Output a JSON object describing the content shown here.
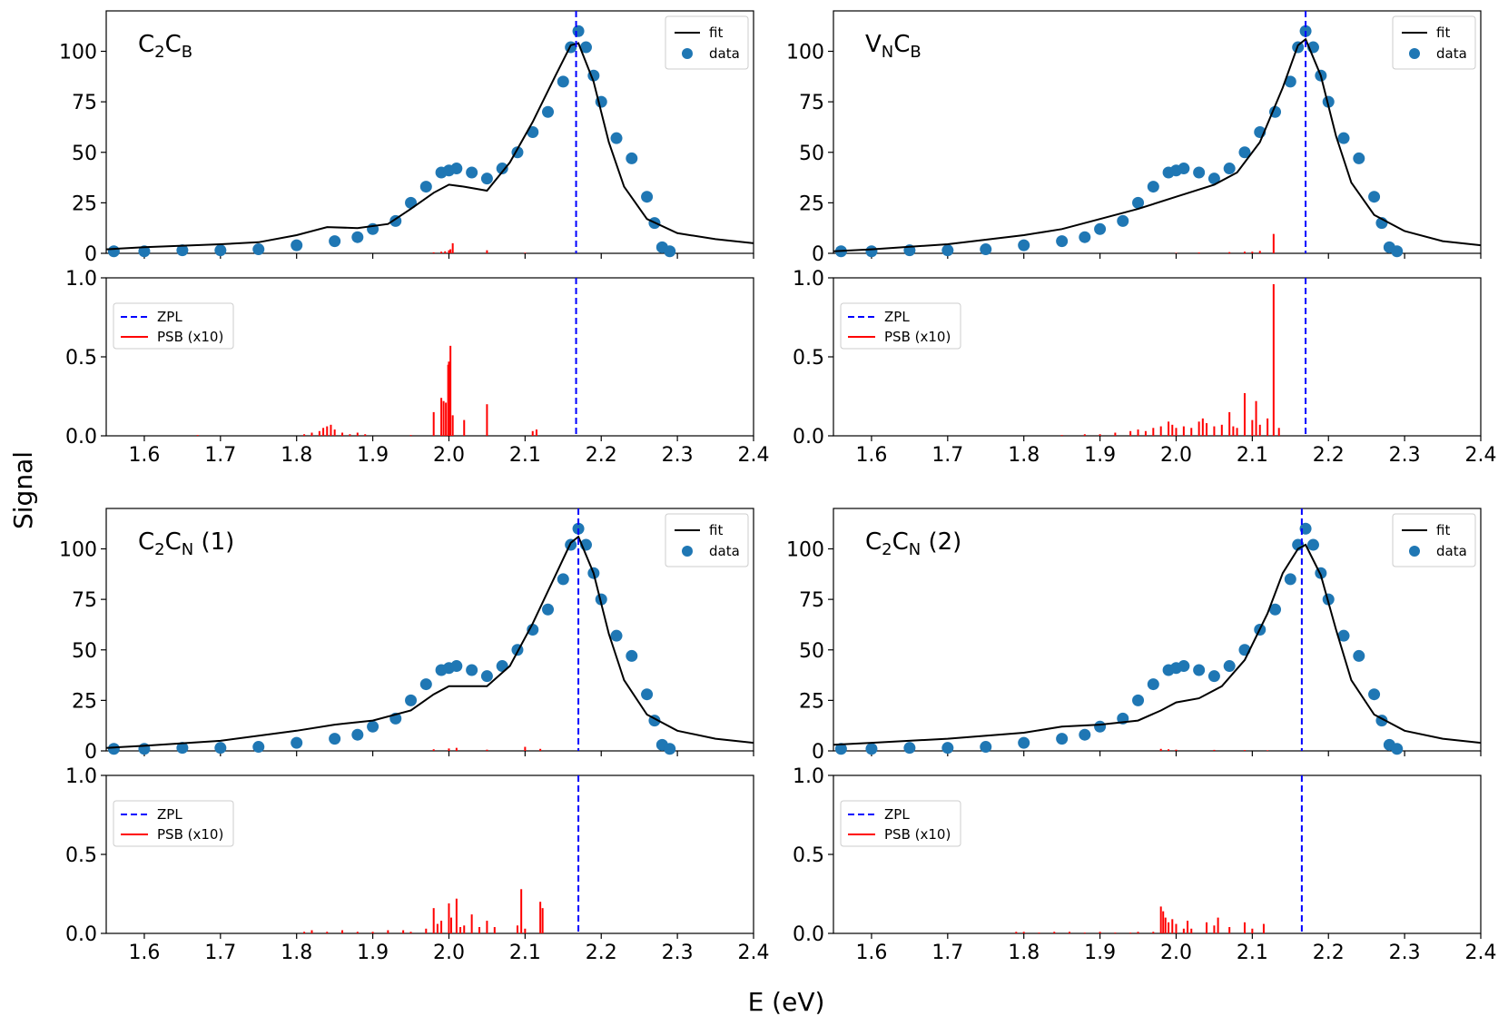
{
  "figure": {
    "xlabel": "E (eV)",
    "ylabel": "Signal"
  },
  "chart_data": [
    {
      "type": "scatter",
      "label": "panel-c2cb",
      "title": {
        "base1": "C",
        "sub1": "2",
        "base2": "C",
        "sub2": "B",
        "suffix": ""
      },
      "xlim": [
        1.55,
        2.4
      ],
      "ylim": [
        0,
        120
      ],
      "yticks": [
        0,
        25,
        50,
        75,
        100
      ],
      "legend": [
        "fit",
        "data"
      ],
      "legend_placement": "top-right",
      "zpl": 2.167,
      "fit": {
        "name": "fit",
        "x": [
          1.55,
          1.6,
          1.7,
          1.75,
          1.8,
          1.84,
          1.88,
          1.92,
          1.95,
          1.98,
          2.0,
          2.02,
          2.05,
          2.08,
          2.11,
          2.14,
          2.16,
          2.17,
          2.19,
          2.21,
          2.23,
          2.26,
          2.3,
          2.35,
          2.4
        ],
        "y": [
          2,
          3,
          4.5,
          5.5,
          9,
          13,
          12.5,
          14.5,
          22,
          30,
          34,
          33,
          31,
          45,
          65,
          88,
          103,
          104,
          85,
          55,
          33,
          17,
          10,
          7,
          5
        ]
      },
      "data": {
        "name": "data",
        "x": [
          1.56,
          1.6,
          1.65,
          1.7,
          1.75,
          1.8,
          1.85,
          1.88,
          1.9,
          1.93,
          1.95,
          1.97,
          1.99,
          2.0,
          2.01,
          2.03,
          2.05,
          2.07,
          2.09,
          2.11,
          2.13,
          2.15,
          2.16,
          2.17,
          2.18,
          2.19,
          2.2,
          2.22,
          2.24,
          2.26,
          2.27,
          2.28,
          2.29
        ],
        "y": [
          1,
          1,
          1.5,
          1.5,
          2,
          4,
          6,
          8,
          12,
          16,
          25,
          33,
          40,
          41,
          42,
          40,
          37,
          42,
          50,
          60,
          70,
          85,
          102,
          110,
          102,
          88,
          75,
          57,
          47,
          28,
          15,
          3,
          1
        ]
      },
      "psb": {
        "x": [
          1.98,
          1.99,
          1.995,
          2.0,
          2.002,
          2.005,
          2.05,
          2.1
        ],
        "y": [
          0.5,
          0.8,
          1.0,
          1.5,
          2.0,
          5.0,
          1.5,
          0.3
        ]
      },
      "bottom": {
        "ylim": [
          0,
          1.0
        ],
        "yticks": [
          0.0,
          0.5,
          1.0
        ],
        "ytick_labels": [
          "0.0",
          "0.5",
          "1.0"
        ],
        "xticks": [
          1.6,
          1.7,
          1.8,
          1.9,
          2.0,
          2.1,
          2.2,
          2.3,
          2.4
        ],
        "xtick_labels": [
          "1.6",
          "1.7",
          "1.8",
          "1.9",
          "2.0",
          "2.1",
          "2.2",
          "2.3",
          "2.4"
        ],
        "legend": [
          "ZPL",
          "PSB (x10)"
        ],
        "legend_placement": "upper-left",
        "psb_sticks": {
          "x": [
            1.67,
            1.81,
            1.82,
            1.83,
            1.835,
            1.84,
            1.845,
            1.85,
            1.86,
            1.87,
            1.88,
            1.89,
            1.95,
            1.98,
            1.99,
            1.993,
            1.996,
            1.999,
            2.0,
            2.002,
            2.005,
            2.02,
            2.05,
            2.11,
            2.115
          ],
          "y": [
            0.005,
            0.01,
            0.02,
            0.03,
            0.05,
            0.06,
            0.07,
            0.04,
            0.02,
            0.01,
            0.02,
            0.01,
            0.005,
            0.15,
            0.24,
            0.22,
            0.21,
            0.45,
            0.47,
            0.57,
            0.13,
            0.1,
            0.2,
            0.03,
            0.04
          ]
        }
      }
    },
    {
      "type": "scatter",
      "label": "panel-vncb",
      "title": {
        "base1": "V",
        "sub1": "N",
        "base2": "C",
        "sub2": "B",
        "suffix": ""
      },
      "xlim": [
        1.55,
        2.4
      ],
      "ylim": [
        0,
        120
      ],
      "yticks": [
        0,
        25,
        50,
        75,
        100
      ],
      "legend": [
        "fit",
        "data"
      ],
      "legend_placement": "top-right",
      "zpl": 2.17,
      "fit": {
        "name": "fit",
        "x": [
          1.55,
          1.6,
          1.7,
          1.8,
          1.85,
          1.9,
          1.95,
          2.0,
          2.05,
          2.08,
          2.11,
          2.14,
          2.16,
          2.17,
          2.19,
          2.21,
          2.23,
          2.26,
          2.3,
          2.35,
          2.4
        ],
        "y": [
          1,
          2,
          4.5,
          9,
          12,
          17,
          22,
          28,
          34,
          40,
          55,
          82,
          103,
          106,
          88,
          58,
          35,
          19,
          11,
          6,
          4
        ]
      },
      "data": {
        "name": "data",
        "x": [
          1.56,
          1.6,
          1.65,
          1.7,
          1.75,
          1.8,
          1.85,
          1.88,
          1.9,
          1.93,
          1.95,
          1.97,
          1.99,
          2.0,
          2.01,
          2.03,
          2.05,
          2.07,
          2.09,
          2.11,
          2.13,
          2.15,
          2.16,
          2.17,
          2.18,
          2.19,
          2.2,
          2.22,
          2.24,
          2.26,
          2.27,
          2.28,
          2.29
        ],
        "y": [
          1,
          1,
          1.5,
          1.5,
          2,
          4,
          6,
          8,
          12,
          16,
          25,
          33,
          40,
          41,
          42,
          40,
          37,
          42,
          50,
          60,
          70,
          85,
          102,
          110,
          102,
          88,
          75,
          57,
          47,
          28,
          15,
          3,
          1
        ]
      },
      "psb": {
        "x": [
          2.0,
          2.03,
          2.07,
          2.09,
          2.1,
          2.11,
          2.128
        ],
        "y": [
          0.2,
          0.4,
          0.6,
          0.8,
          0.8,
          1.2,
          9.6
        ]
      },
      "bottom": {
        "ylim": [
          0,
          1.0
        ],
        "yticks": [
          0.0,
          0.5,
          1.0
        ],
        "ytick_labels": [
          "0.0",
          "0.5",
          "1.0"
        ],
        "xticks": [
          1.6,
          1.7,
          1.8,
          1.9,
          2.0,
          2.1,
          2.2,
          2.3,
          2.4
        ],
        "xtick_labels": [
          "1.6",
          "1.7",
          "1.8",
          "1.9",
          "2.0",
          "2.1",
          "2.2",
          "2.3",
          "2.4"
        ],
        "legend": [
          "ZPL",
          "PSB (x10)"
        ],
        "legend_placement": "upper-left",
        "psb_sticks": {
          "x": [
            1.85,
            1.88,
            1.9,
            1.92,
            1.94,
            1.95,
            1.96,
            1.97,
            1.98,
            1.99,
            1.995,
            2.0,
            2.01,
            2.02,
            2.03,
            2.035,
            2.04,
            2.05,
            2.06,
            2.07,
            2.075,
            2.08,
            2.09,
            2.1,
            2.105,
            2.11,
            2.12,
            2.128,
            2.135
          ],
          "y": [
            0.005,
            0.01,
            0.01,
            0.02,
            0.03,
            0.04,
            0.03,
            0.05,
            0.06,
            0.09,
            0.07,
            0.05,
            0.06,
            0.05,
            0.09,
            0.11,
            0.08,
            0.06,
            0.07,
            0.15,
            0.06,
            0.05,
            0.27,
            0.1,
            0.22,
            0.07,
            0.11,
            0.96,
            0.05
          ]
        }
      }
    },
    {
      "type": "scatter",
      "label": "panel-c2cn-1",
      "title": {
        "base1": "C",
        "sub1": "2",
        "base2": "C",
        "sub2": "N",
        "suffix": " (1)"
      },
      "xlim": [
        1.55,
        2.4
      ],
      "ylim": [
        0,
        120
      ],
      "yticks": [
        0,
        25,
        50,
        75,
        100
      ],
      "legend": [
        "fit",
        "data"
      ],
      "legend_placement": "top-right",
      "zpl": 2.17,
      "fit": {
        "name": "fit",
        "x": [
          1.55,
          1.6,
          1.7,
          1.8,
          1.85,
          1.9,
          1.95,
          1.98,
          2.0,
          2.02,
          2.05,
          2.08,
          2.11,
          2.14,
          2.16,
          2.17,
          2.19,
          2.21,
          2.23,
          2.26,
          2.3,
          2.35,
          2.4
        ],
        "y": [
          1.5,
          2.5,
          5,
          10,
          13,
          15,
          20,
          28,
          32,
          32,
          32,
          42,
          63,
          87,
          103,
          106,
          88,
          58,
          35,
          18,
          10,
          6,
          4
        ]
      },
      "data": {
        "name": "data",
        "x": [
          1.56,
          1.6,
          1.65,
          1.7,
          1.75,
          1.8,
          1.85,
          1.88,
          1.9,
          1.93,
          1.95,
          1.97,
          1.99,
          2.0,
          2.01,
          2.03,
          2.05,
          2.07,
          2.09,
          2.11,
          2.13,
          2.15,
          2.16,
          2.17,
          2.18,
          2.19,
          2.2,
          2.22,
          2.24,
          2.26,
          2.27,
          2.28,
          2.29
        ],
        "y": [
          1,
          1,
          1.5,
          1.5,
          2,
          4,
          6,
          8,
          12,
          16,
          25,
          33,
          40,
          41,
          42,
          40,
          37,
          42,
          50,
          60,
          70,
          85,
          102,
          110,
          102,
          88,
          75,
          57,
          47,
          28,
          15,
          3,
          1
        ]
      },
      "psb": {
        "x": [
          1.98,
          2.0,
          2.01,
          2.05,
          2.1,
          2.12
        ],
        "y": [
          0.8,
          1.2,
          1.5,
          0.6,
          2.0,
          1.0
        ]
      },
      "bottom": {
        "ylim": [
          0,
          1.0
        ],
        "yticks": [
          0.0,
          0.5,
          1.0
        ],
        "ytick_labels": [
          "0.0",
          "0.5",
          "1.0"
        ],
        "xticks": [
          1.6,
          1.7,
          1.8,
          1.9,
          2.0,
          2.1,
          2.2,
          2.3,
          2.4
        ],
        "xtick_labels": [
          "1.6",
          "1.7",
          "1.8",
          "1.9",
          "2.0",
          "2.1",
          "2.2",
          "2.3",
          "2.4"
        ],
        "legend": [
          "ZPL",
          "PSB (x10)"
        ],
        "legend_placement": "upper-left",
        "psb_sticks": {
          "x": [
            1.81,
            1.82,
            1.84,
            1.86,
            1.88,
            1.9,
            1.92,
            1.94,
            1.95,
            1.97,
            1.98,
            1.985,
            1.99,
            2.0,
            2.003,
            2.01,
            2.015,
            2.02,
            2.03,
            2.04,
            2.05,
            2.06,
            2.09,
            2.095,
            2.1,
            2.12,
            2.123
          ],
          "y": [
            0.01,
            0.02,
            0.01,
            0.02,
            0.01,
            0.01,
            0.02,
            0.02,
            0.01,
            0.03,
            0.16,
            0.06,
            0.08,
            0.19,
            0.1,
            0.22,
            0.04,
            0.05,
            0.12,
            0.04,
            0.08,
            0.04,
            0.05,
            0.28,
            0.03,
            0.2,
            0.16
          ]
        }
      }
    },
    {
      "type": "scatter",
      "label": "panel-c2cn-2",
      "title": {
        "base1": "C",
        "sub1": "2",
        "base2": "C",
        "sub2": "N",
        "suffix": " (2)"
      },
      "xlim": [
        1.55,
        2.4
      ],
      "ylim": [
        0,
        120
      ],
      "yticks": [
        0,
        25,
        50,
        75,
        100
      ],
      "legend": [
        "fit",
        "data"
      ],
      "legend_placement": "top-right",
      "zpl": 2.165,
      "fit": {
        "name": "fit",
        "x": [
          1.55,
          1.6,
          1.7,
          1.8,
          1.85,
          1.9,
          1.95,
          1.98,
          2.0,
          2.03,
          2.06,
          2.09,
          2.12,
          2.14,
          2.16,
          2.17,
          2.19,
          2.21,
          2.23,
          2.26,
          2.3,
          2.35,
          2.4
        ],
        "y": [
          3,
          4,
          6,
          9,
          12,
          13,
          15,
          20,
          24,
          26,
          32,
          45,
          68,
          88,
          100,
          102,
          87,
          60,
          35,
          18,
          10,
          6,
          4
        ]
      },
      "data": {
        "name": "data",
        "x": [
          1.56,
          1.6,
          1.65,
          1.7,
          1.75,
          1.8,
          1.85,
          1.88,
          1.9,
          1.93,
          1.95,
          1.97,
          1.99,
          2.0,
          2.01,
          2.03,
          2.05,
          2.07,
          2.09,
          2.11,
          2.13,
          2.15,
          2.16,
          2.17,
          2.18,
          2.19,
          2.2,
          2.22,
          2.24,
          2.26,
          2.27,
          2.28,
          2.29
        ],
        "y": [
          1,
          1,
          1.5,
          1.5,
          2,
          4,
          6,
          8,
          12,
          16,
          25,
          33,
          40,
          41,
          42,
          40,
          37,
          42,
          50,
          60,
          70,
          85,
          102,
          110,
          102,
          88,
          75,
          57,
          47,
          28,
          15,
          3,
          1
        ]
      },
      "psb": {
        "x": [
          1.98,
          1.99,
          2.0,
          2.05,
          2.09,
          2.12
        ],
        "y": [
          1.0,
          0.8,
          0.6,
          0.5,
          0.4,
          0.3
        ]
      },
      "bottom": {
        "ylim": [
          0,
          1.0
        ],
        "yticks": [
          0.0,
          0.5,
          1.0
        ],
        "ytick_labels": [
          "0.0",
          "0.5",
          "1.0"
        ],
        "xticks": [
          1.6,
          1.7,
          1.8,
          1.9,
          2.0,
          2.1,
          2.2,
          2.3,
          2.4
        ],
        "xtick_labels": [
          "1.6",
          "1.7",
          "1.8",
          "1.9",
          "2.0",
          "2.1",
          "2.2",
          "2.3",
          "2.4"
        ],
        "legend": [
          "ZPL",
          "PSB (x10)"
        ],
        "legend_placement": "upper-left",
        "psb_sticks": {
          "x": [
            1.79,
            1.8,
            1.82,
            1.84,
            1.86,
            1.88,
            1.9,
            1.92,
            1.94,
            1.95,
            1.97,
            1.98,
            1.983,
            1.986,
            1.99,
            1.995,
            2.0,
            2.01,
            2.015,
            2.02,
            2.04,
            2.05,
            2.055,
            2.07,
            2.09,
            2.1,
            2.115
          ],
          "y": [
            0.01,
            0.01,
            0.005,
            0.01,
            0.01,
            0.005,
            0.01,
            0.005,
            0.005,
            0.01,
            0.01,
            0.17,
            0.14,
            0.1,
            0.07,
            0.09,
            0.06,
            0.03,
            0.08,
            0.03,
            0.07,
            0.05,
            0.1,
            0.04,
            0.07,
            0.03,
            0.06
          ]
        }
      }
    }
  ]
}
